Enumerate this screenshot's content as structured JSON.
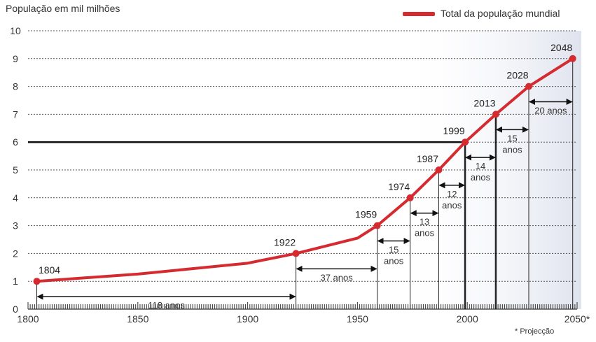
{
  "chart_data": {
    "type": "line",
    "ylabel": "População em mil milhões",
    "legend": {
      "label": "Total da população mundial",
      "position": "top-right"
    },
    "footnote": "* Projecção",
    "colors": {
      "line": "#d42a30",
      "projection_shade": "#dfe3ee",
      "grid": "#555555"
    },
    "xlim": [
      1800,
      2050
    ],
    "ylim": [
      0,
      10
    ],
    "x_ticks": [
      "1800",
      "1850",
      "1900",
      "1950",
      "2000",
      "2050*"
    ],
    "y_ticks": [
      "0",
      "1",
      "2",
      "3",
      "4",
      "5",
      "6",
      "7",
      "8",
      "9",
      "10"
    ],
    "series": [
      {
        "name": "Total da população mundial",
        "x": [
          1804,
          1850,
          1900,
          1922,
          1950,
          1959,
          1974,
          1987,
          1999,
          2013,
          2028,
          2048
        ],
        "y": [
          1,
          1.26,
          1.65,
          2,
          2.55,
          3,
          4,
          5,
          6,
          7,
          8,
          9
        ]
      }
    ],
    "milestones": [
      {
        "year": 1804,
        "label": "1804",
        "value": 1
      },
      {
        "year": 1922,
        "label": "1922",
        "value": 2
      },
      {
        "year": 1959,
        "label": "1959",
        "value": 3
      },
      {
        "year": 1974,
        "label": "1974",
        "value": 4
      },
      {
        "year": 1987,
        "label": "1987",
        "value": 5
      },
      {
        "year": 1999,
        "label": "1999",
        "value": 6
      },
      {
        "year": 2013,
        "label": "2013",
        "value": 7
      },
      {
        "year": 2028,
        "label": "2028",
        "value": 8
      },
      {
        "year": 2048,
        "label": "2048",
        "value": 9
      }
    ],
    "intervals": [
      {
        "from": 1804,
        "to": 1922,
        "label": "118 anos"
      },
      {
        "from": 1922,
        "to": 1959,
        "label": "37 anos"
      },
      {
        "from": 1959,
        "to": 1974,
        "label": "15 anos"
      },
      {
        "from": 1974,
        "to": 1987,
        "label": "13 anos"
      },
      {
        "from": 1987,
        "to": 1999,
        "label": "12 anos"
      },
      {
        "from": 1999,
        "to": 2013,
        "label": "14 anos"
      },
      {
        "from": 2013,
        "to": 2028,
        "label": "15 anos"
      },
      {
        "from": 2028,
        "to": 2048,
        "label": "20 anos"
      }
    ],
    "grid": true,
    "projection_from": 2013
  }
}
